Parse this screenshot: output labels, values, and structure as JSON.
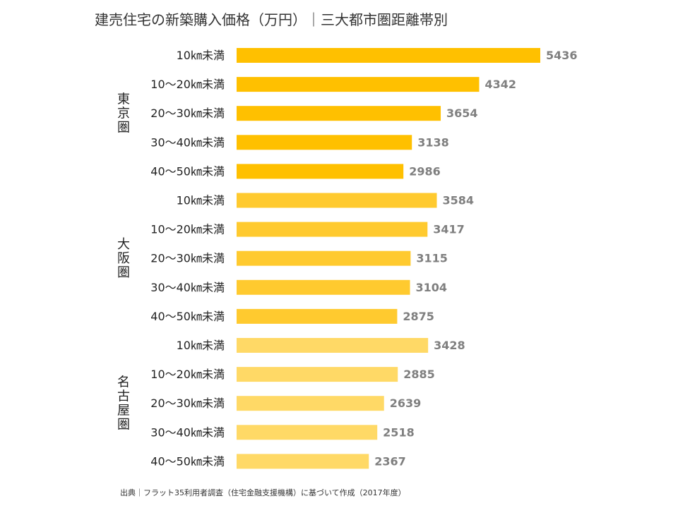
{
  "title": "建売住宅の新築購入価格（万円）｜三大都市圏距離帯別",
  "source": "出典｜フラット35利用者調査（住宅金融支援機構）に基づいて作成（2017年度）",
  "chart_data": {
    "type": "bar",
    "orientation": "horizontal",
    "title": "建売住宅の新築購入価格（万円）｜三大都市圏距離帯別",
    "xlabel": "",
    "ylabel": "",
    "xlim": [
      0,
      5436
    ],
    "grid": false,
    "groups": [
      {
        "name": "東京圏",
        "color": "#FFC000",
        "categories": [
          "10㎞未満",
          "10～20㎞未満",
          "20～30㎞未満",
          "30～40㎞未満",
          "40～50㎞未満"
        ],
        "values": [
          5436,
          4342,
          3654,
          3138,
          2986
        ]
      },
      {
        "name": "大阪圏",
        "color": "#FFCA2F",
        "categories": [
          "10㎞未満",
          "10～20㎞未満",
          "20～30㎞未満",
          "30～40㎞未満",
          "40～50㎞未満"
        ],
        "values": [
          3584,
          3417,
          3115,
          3104,
          2875
        ]
      },
      {
        "name": "名古屋圏",
        "color": "#FFD966",
        "categories": [
          "10㎞未満",
          "10～20㎞未満",
          "20～30㎞未満",
          "30～40㎞未満",
          "40～50㎞未満"
        ],
        "values": [
          3428,
          2885,
          2639,
          2518,
          2367
        ]
      }
    ]
  }
}
